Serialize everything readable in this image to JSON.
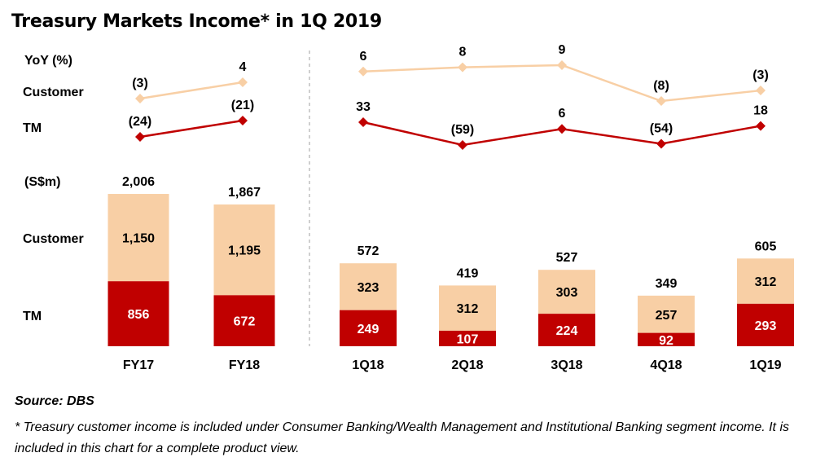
{
  "title": "Treasury Markets Income* in 1Q 2019",
  "source": "Source: DBS",
  "footnote": "* Treasury customer income is included under Consumer Banking/Wealth Management and Institutional Banking segment income. It is included in this chart for a complete product view.",
  "row_labels": {
    "yoy": "YoY (%)",
    "yoy_customer": "Customer",
    "yoy_tm": "TM",
    "unit": "(S$m)",
    "bar_customer": "Customer",
    "bar_tm": "TM"
  },
  "colors": {
    "customer_bar": "#F8CFA5",
    "tm_bar": "#C00000",
    "customer_line": "#F8CFA5",
    "tm_line": "#C00000",
    "divider": "#BFBFBF"
  },
  "chart_data": [
    {
      "type": "bar",
      "stacked": true,
      "categories": [
        "FY17",
        "FY18"
      ],
      "series": [
        {
          "name": "TM",
          "values": [
            856,
            672
          ],
          "labels": [
            "856",
            "672"
          ]
        },
        {
          "name": "Customer",
          "values": [
            1150,
            1195
          ],
          "labels": [
            "1,150",
            "1,195"
          ]
        }
      ],
      "totals": [
        2006,
        1867
      ],
      "total_labels": [
        "2,006",
        "1,867"
      ]
    },
    {
      "type": "line",
      "categories": [
        "FY17",
        "FY18"
      ],
      "series": [
        {
          "name": "Customer",
          "values": [
            -3,
            4
          ],
          "labels": [
            "(3)",
            "4"
          ]
        },
        {
          "name": "TM",
          "values": [
            -24,
            -21
          ],
          "labels": [
            "(24)",
            "(21)"
          ]
        }
      ]
    },
    {
      "type": "bar",
      "stacked": true,
      "categories": [
        "1Q18",
        "2Q18",
        "3Q18",
        "4Q18",
        "1Q19"
      ],
      "series": [
        {
          "name": "TM",
          "values": [
            249,
            107,
            224,
            92,
            293
          ],
          "labels": [
            "249",
            "107",
            "224",
            "92",
            "293"
          ]
        },
        {
          "name": "Customer",
          "values": [
            323,
            312,
            303,
            257,
            312
          ],
          "labels": [
            "323",
            "312",
            "303",
            "257",
            "312"
          ]
        }
      ],
      "totals": [
        572,
        419,
        527,
        349,
        605
      ],
      "total_labels": [
        "572",
        "419",
        "527",
        "349",
        "605"
      ]
    },
    {
      "type": "line",
      "categories": [
        "1Q18",
        "2Q18",
        "3Q18",
        "4Q18",
        "1Q19"
      ],
      "series": [
        {
          "name": "Customer",
          "values": [
            6,
            8,
            9,
            -8,
            -3
          ],
          "labels": [
            "6",
            "8",
            "9",
            "(8)",
            "(3)"
          ]
        },
        {
          "name": "TM",
          "values": [
            33,
            -59,
            6,
            -54,
            18
          ],
          "labels": [
            "33",
            "(59)",
            "6",
            "(54)",
            "18"
          ]
        }
      ]
    }
  ]
}
